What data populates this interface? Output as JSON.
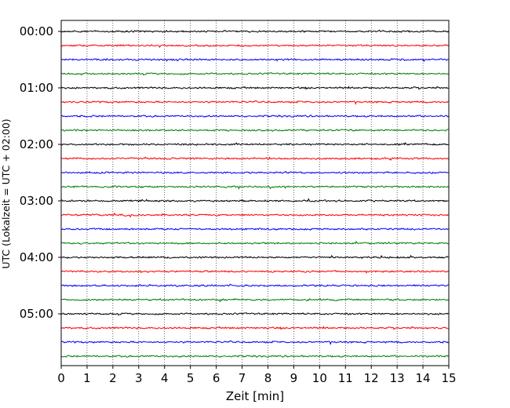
{
  "chart_data": {
    "type": "line",
    "title": "",
    "xlabel": "Zeit  [min]",
    "ylabel": "UTC (Lokalzeit = UTC + 02:00)",
    "xlim": [
      0,
      15
    ],
    "x_ticks": [
      0,
      1,
      2,
      3,
      4,
      5,
      6,
      7,
      8,
      9,
      10,
      11,
      12,
      13,
      14,
      15
    ],
    "y_tick_labels": [
      "00:00",
      "01:00",
      "02:00",
      "03:00",
      "04:00",
      "05:00"
    ],
    "grid": "vertical dotted at each minute",
    "trace_interval_min": 15,
    "trace_count": 24,
    "trace_colors": [
      "#000000",
      "#ff0000",
      "#0000ff",
      "#008000"
    ]
  }
}
